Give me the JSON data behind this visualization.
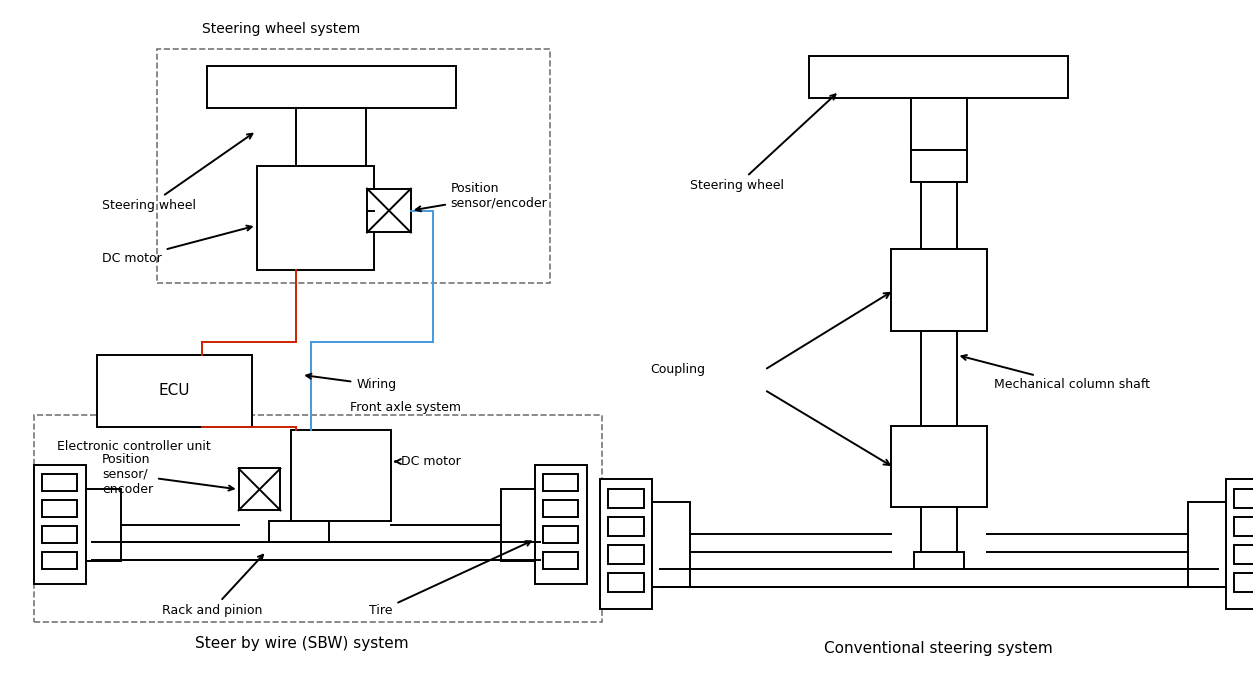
{
  "figsize": [
    12.56,
    6.88
  ],
  "dpi": 100,
  "bg_color": "#ffffff",
  "line_color": "#000000",
  "red_color": "#cc2200",
  "blue_color": "#4499dd",
  "dashed_color": "#777777",
  "lw": 1.4,
  "font_size": 9,
  "labels": {
    "sbw_title": "Steer by wire (SBW) system",
    "conv_title": "Conventional steering system",
    "sw_system": "Steering wheel system",
    "sw_left": "Steering wheel",
    "dc_top": "DC motor",
    "pos_top": "Position\nsensor/encoder",
    "ecu": "ECU",
    "elec_ctrl": "Electronic controller unit",
    "wiring": "Wiring",
    "front_axle": "Front axle system",
    "pos_bot": "Position\nsensor/\nencoder",
    "dc_bot": "DC motor",
    "rack": "Rack and pinion",
    "tire": "Tire",
    "sw_right": "Steering wheel",
    "coupling": "Coupling",
    "mech_shaft": "Mechanical column shaft"
  }
}
